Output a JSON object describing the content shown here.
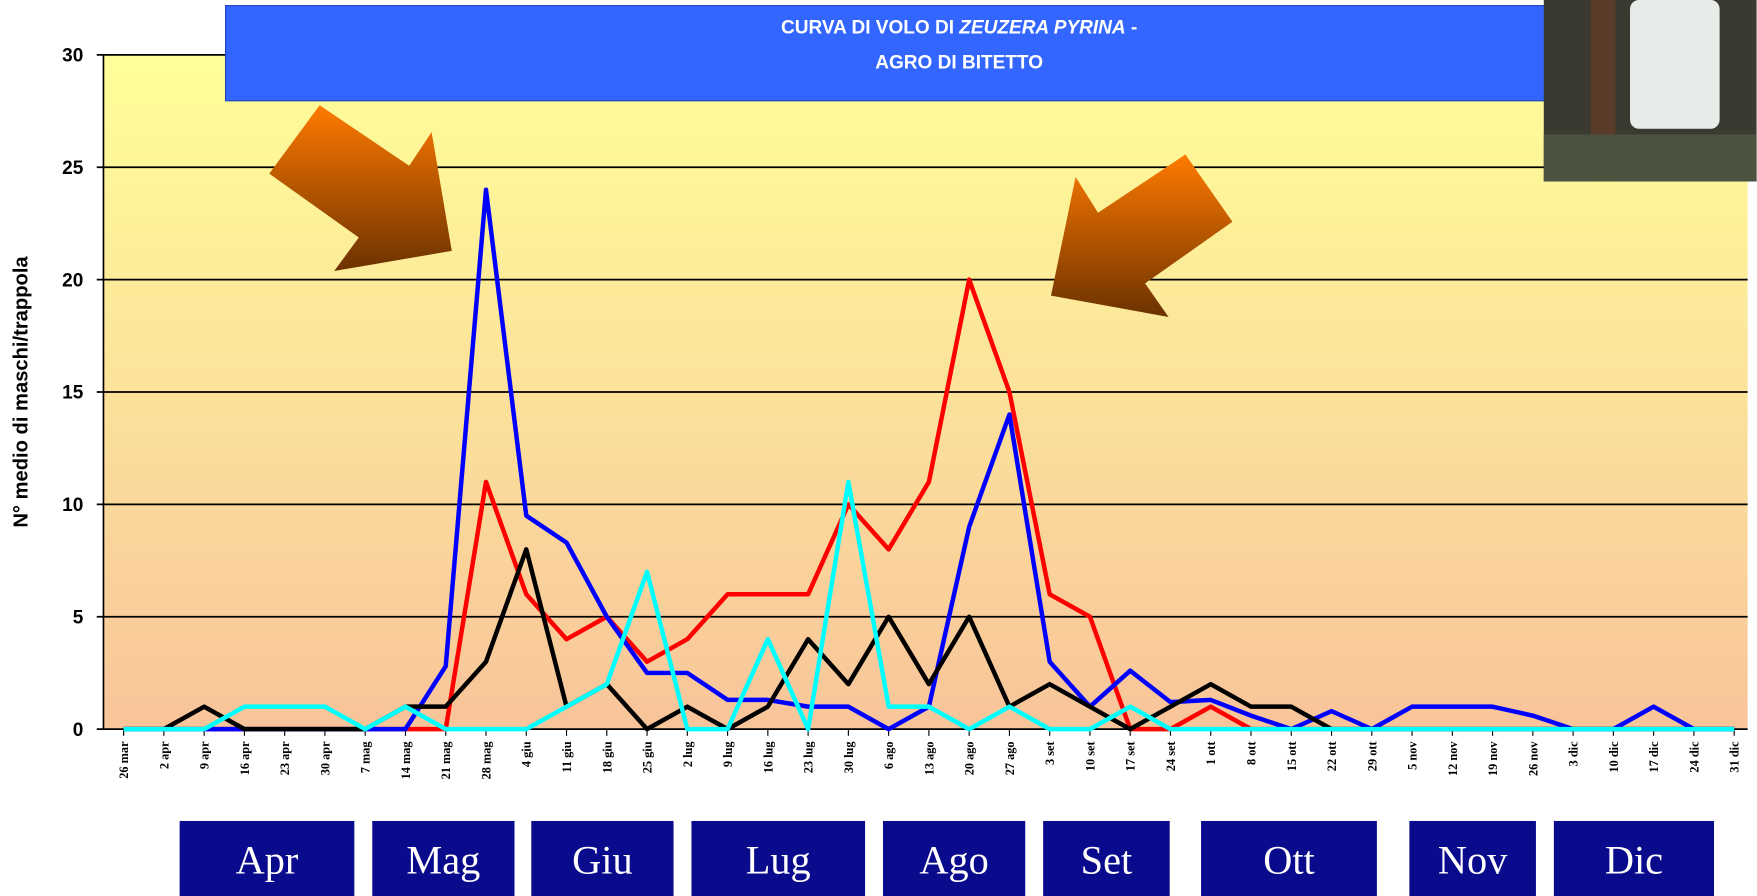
{
  "chart_data": {
    "type": "line",
    "title": {
      "prefix": "CURVA DI VOLO DI",
      "species": "ZEUZERA PYRINA",
      "suffix": "-",
      "line2": "AGRO DI BITETTO"
    },
    "y_label": "N° medio di maschi/trappola",
    "categories": [
      "26 mar",
      "2 apr",
      "9 apr",
      "16 apr",
      "23 apr",
      "30 apr",
      "7 mag",
      "14 mag",
      "21 mag",
      "28 mag",
      "4 giu",
      "11 giu",
      "18 giu",
      "25 giu",
      "2 lug",
      "9 lug",
      "16 lug",
      "23 lug",
      "30 lug",
      "6 ago",
      "13 ago",
      "20 ago",
      "27 ago",
      "3  set",
      "10 set",
      "17 set",
      "24 set",
      "1  ott",
      "8  ott",
      "15 ott",
      "22 ott",
      "29 ott",
      "5 nov",
      "12 nov",
      "19 nov",
      "26 nov",
      "3  dic",
      "10 dic",
      "17 dic",
      "24 dic",
      "31 dic"
    ],
    "series": [
      {
        "color": "#ff0000",
        "values": [
          0,
          0,
          0,
          0,
          0,
          0,
          0,
          0,
          0,
          11,
          6,
          4,
          5,
          3,
          4,
          6,
          6,
          6,
          10,
          8,
          11,
          20,
          15,
          6,
          5,
          0,
          0,
          1,
          0,
          0,
          0,
          0,
          0,
          0,
          0,
          0,
          0,
          0,
          0,
          0,
          0
        ]
      },
      {
        "color": "#0000ff",
        "values": [
          0,
          0,
          0,
          0,
          0,
          0,
          0,
          0,
          2.8,
          24,
          9.5,
          8.3,
          5,
          2.5,
          2.5,
          1.3,
          1.3,
          1,
          1,
          0,
          1,
          9,
          14,
          3,
          1,
          2.6,
          1.2,
          1.3,
          0.6,
          0,
          0.8,
          0,
          1,
          1,
          1,
          0.6,
          0,
          0,
          1,
          0,
          0
        ]
      },
      {
        "color": "#000000",
        "values": [
          0,
          0,
          1,
          0,
          0,
          0,
          0,
          1,
          1,
          3,
          8,
          1,
          2,
          0,
          1,
          0,
          1,
          4,
          2,
          5,
          2,
          5,
          1,
          2,
          1,
          0,
          1,
          2,
          1,
          1,
          0,
          0,
          0,
          0,
          0,
          0,
          0,
          0,
          0,
          0,
          0
        ]
      },
      {
        "color": "#00ffff",
        "values": [
          0,
          0,
          0,
          1,
          1,
          1,
          0,
          1,
          0,
          0,
          0,
          1,
          2,
          7,
          0,
          0,
          4,
          0,
          11,
          1,
          1,
          0,
          1,
          0,
          0,
          1,
          0,
          0,
          0,
          0,
          0,
          0,
          0,
          0,
          0,
          0,
          0,
          0,
          0,
          0,
          0
        ]
      }
    ],
    "ylim": [
      0,
      30
    ],
    "yticks": [
      0,
      5,
      10,
      15,
      20,
      25,
      30
    ],
    "grid": true,
    "months": [
      "Apr",
      "Mag",
      "Giu",
      "Lug",
      "Ago",
      "Set",
      "Ott",
      "Nov",
      "Dic"
    ]
  }
}
